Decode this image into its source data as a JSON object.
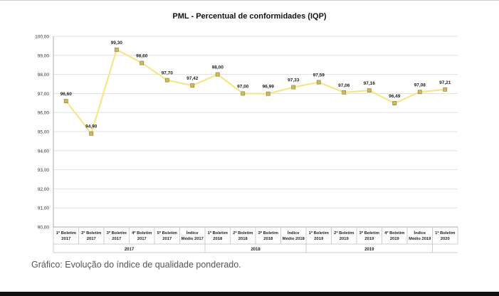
{
  "caption": "Gráfico: Evolução do índice de qualidade ponderado.",
  "colors": {
    "line": "#f7e58a",
    "marker_fill": "#cdb860",
    "marker_stroke": "#8a7a30",
    "grid": "#d9d9d9"
  },
  "chart_data": {
    "type": "line",
    "title": "PML - Percentual de conformidades (IQP)",
    "xlabel": "",
    "ylabel": "",
    "ylim": [
      90,
      100
    ],
    "yticks": [
      "90,00",
      "91,00",
      "92,00",
      "93,00",
      "94,00",
      "95,00",
      "96,00",
      "97,00",
      "98,00",
      "99,00",
      "100,00"
    ],
    "categories": [
      [
        "1º Boletim",
        "2017"
      ],
      [
        "2º Boletim",
        "2017"
      ],
      [
        "3º Boletim",
        "2017"
      ],
      [
        "4º Boletim",
        "2017"
      ],
      [
        "5º Boletim",
        "2017"
      ],
      [
        "Índice",
        "Médio 2017"
      ],
      [
        "1º Boletim",
        "2018"
      ],
      [
        "2º Boletim",
        "2018"
      ],
      [
        "3º Boletim",
        "2018"
      ],
      [
        "Índice",
        "Médio 2018"
      ],
      [
        "1º Boletim",
        "2019"
      ],
      [
        "2º Boletim",
        "2019"
      ],
      [
        "3º Boletim",
        "2019"
      ],
      [
        "4º Boletim",
        "2019"
      ],
      [
        "Índice",
        "Médio 2019"
      ],
      [
        "1º Boletim",
        "2020"
      ]
    ],
    "values": [
      96.6,
      94.9,
      99.3,
      98.6,
      97.7,
      97.42,
      98.0,
      97.0,
      96.99,
      97.33,
      97.59,
      97.06,
      97.16,
      96.49,
      97.08,
      97.21
    ],
    "data_labels": [
      "96,60",
      "94,90",
      "99,30",
      "98,60",
      "97,70",
      "97,42",
      "98,00",
      "97,00",
      "96,99",
      "97,33",
      "97,59",
      "97,06",
      "97,16",
      "96,49",
      "97,08",
      "97,21"
    ],
    "groups": [
      {
        "label": "2017",
        "start": 0,
        "end": 5
      },
      {
        "label": "2018",
        "start": 6,
        "end": 9
      },
      {
        "label": "2019",
        "start": 10,
        "end": 14
      }
    ],
    "grid": true,
    "legend": "none"
  }
}
